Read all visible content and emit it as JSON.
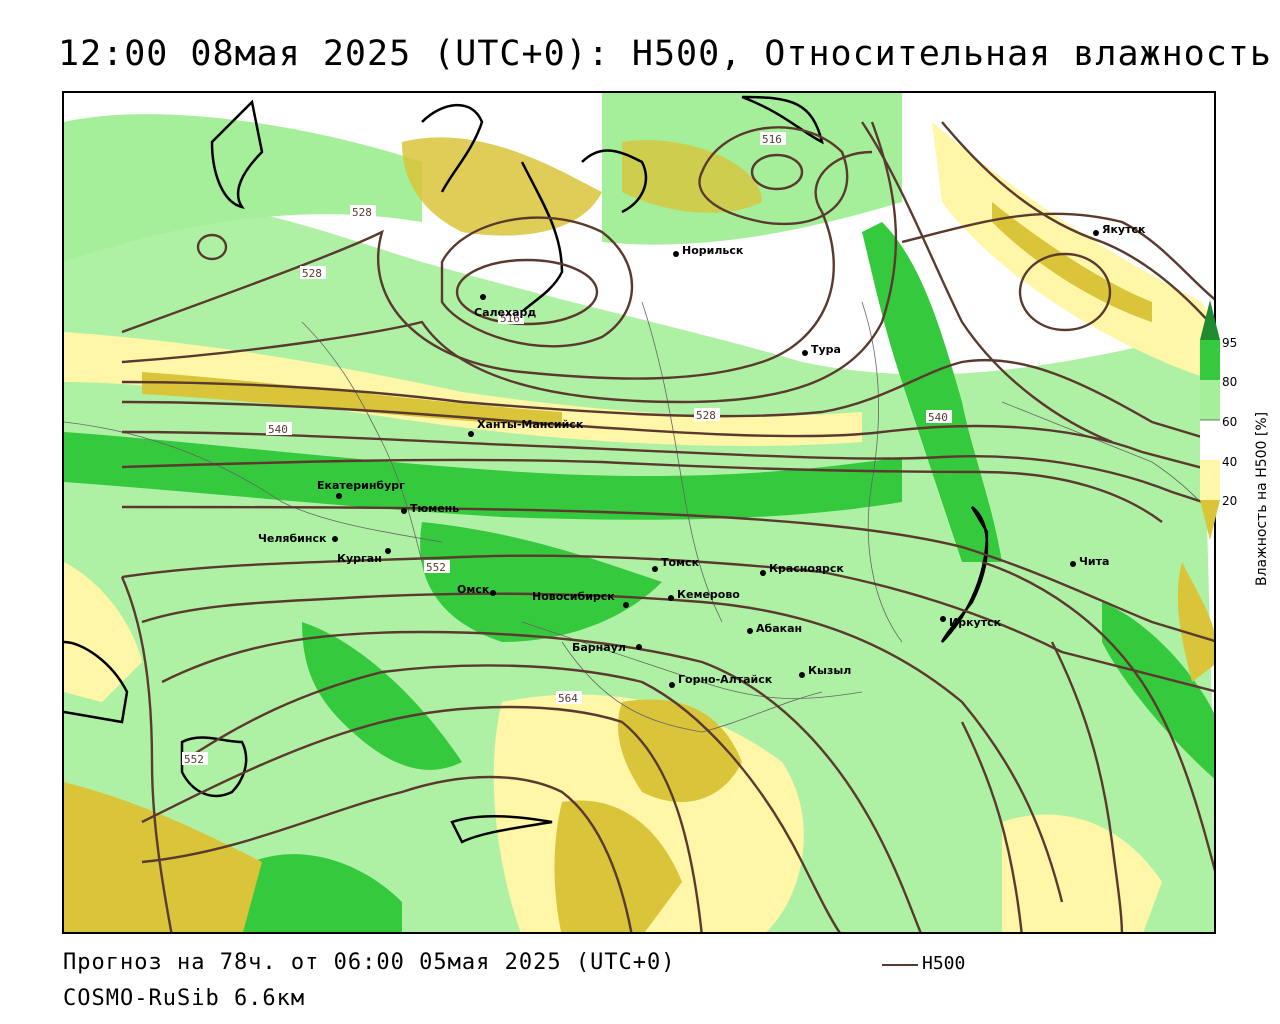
{
  "title": "12:00 08мая 2025 (UTC+0): H500, Относительная влажность",
  "footer": {
    "forecast": "Прогноз на 78ч. от 06:00 05мая 2025 (UTC+0)",
    "model": "COSMO-RuSib 6.6км"
  },
  "legend": {
    "line_label": "H500",
    "line_color": "#5a3a2e"
  },
  "colorbar": {
    "title": "Влажность на H500 [%]",
    "ticks": [
      "95",
      "80",
      "60",
      "40",
      "20"
    ],
    "colors": {
      "c95": "#1e8b2e",
      "c80": "#35c93d",
      "c60": "#a6ef9a",
      "c50": "#ffffff",
      "c40": "#fff6a8",
      "c20": "#d9c43a"
    }
  },
  "cities": [
    {
      "name": "Якутск"
    },
    {
      "name": "Норильск"
    },
    {
      "name": "Салехард"
    },
    {
      "name": "Тура"
    },
    {
      "name": "Ханты-Мансийск"
    },
    {
      "name": "Екатеринбург"
    },
    {
      "name": "Тюмень"
    },
    {
      "name": "Челябинск"
    },
    {
      "name": "Курган"
    },
    {
      "name": "Омск"
    },
    {
      "name": "Новосибирск"
    },
    {
      "name": "Томск"
    },
    {
      "name": "Красноярск"
    },
    {
      "name": "Кемерово"
    },
    {
      "name": "Абакан"
    },
    {
      "name": "Барнаул"
    },
    {
      "name": "Горно-Алтайск"
    },
    {
      "name": "Кызыл"
    },
    {
      "name": "Иркутск"
    },
    {
      "name": "Чита"
    }
  ],
  "contour_labels": [
    "516",
    "516",
    "528",
    "528",
    "528",
    "540",
    "540",
    "552",
    "552",
    "564"
  ]
}
